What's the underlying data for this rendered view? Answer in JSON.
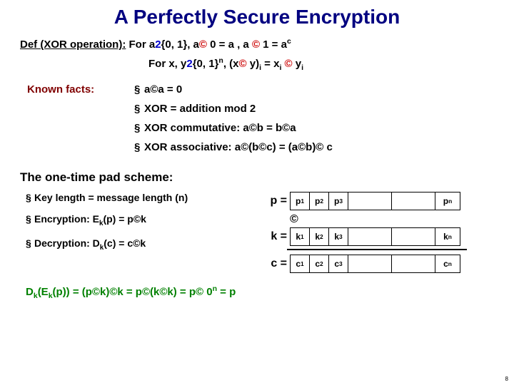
{
  "title": "A Perfectly Secure Encryption",
  "def": {
    "label": "Def (XOR operation):",
    "part1_black": " For a",
    "part1_blue1": "2",
    "part1_black2": "{0, 1}, a",
    "part1_red1": "©",
    "part1_black3": " 0 = a , a ",
    "part1_red2": "©",
    "part1_black4": " 1 = a",
    "part1_sup": "c"
  },
  "forline": {
    "black1": "For x, y",
    "blue1": "2",
    "black2": "{0, 1}",
    "sup1": "n",
    "black3": ",  (x",
    "red1": "©",
    "black4": " y)",
    "sub1": "i",
    "black5": " = x",
    "sub2": "i",
    "black6": " ",
    "red2": "©",
    "black7": " y",
    "sub3": "i"
  },
  "known_label": "Known facts:",
  "facts": [
    "a©a = 0",
    "XOR = addition mod 2",
    "XOR commutative: a©b = b©a",
    "XOR associative:  a©(b©c) = (a©b)© c"
  ],
  "scheme_title": "The one-time pad scheme:",
  "scheme_items": {
    "i0": "Key length = message length (n)",
    "i1_a": "Encryption: E",
    "i1_sub": "k",
    "i1_b": "(p) = p©k",
    "i2_a": "Decryption: D",
    "i2_sub": "k",
    "i2_b": "(c) = c©k"
  },
  "table": {
    "p_label": "p =",
    "k_label": "k =",
    "c_label": "c =",
    "xor": "©",
    "rows": {
      "p": {
        "c1_a": "p",
        "c1_s": "1",
        "c2_a": "p",
        "c2_s": "2",
        "c3_a": "p",
        "c3_s": "3",
        "cn_a": "p",
        "cn_s": "n"
      },
      "k": {
        "c1_a": "k",
        "c1_s": "1",
        "c2_a": "k",
        "c2_s": "2",
        "c3_a": "k",
        "c3_s": "3",
        "cn_a": "k",
        "cn_s": "n"
      },
      "c": {
        "c1_a": "c",
        "c1_s": "1",
        "c2_a": "c",
        "c2_s": "2",
        "c3_a": "c",
        "c3_s": "3",
        "cn_a": "c",
        "cn_s": "n"
      }
    }
  },
  "proof": {
    "a": "D",
    "sub1": "k",
    "b": "(E",
    "sub2": "k",
    "c": "(p)) = (p©k)©k = p©(k©k) = p© 0",
    "sup1": "n",
    "d": " = p"
  },
  "pagenum": "8",
  "bullet": "§"
}
